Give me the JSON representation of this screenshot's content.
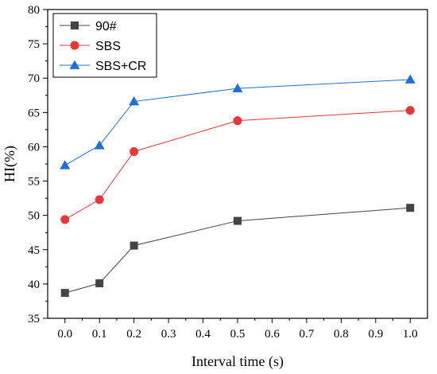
{
  "chart_data": {
    "type": "line",
    "xlabel": "Interval time (s)",
    "ylabel": "HI(%)",
    "xlim": [
      -0.05,
      1.05
    ],
    "ylim": [
      35,
      80
    ],
    "xticks": [
      "0.0",
      "0.1",
      "0.2",
      "0.3",
      "0.4",
      "0.5",
      "0.6",
      "0.7",
      "0.8",
      "0.9",
      "1.0"
    ],
    "yticks": [
      "35",
      "40",
      "45",
      "50",
      "55",
      "60",
      "65",
      "70",
      "75",
      "80"
    ],
    "grid": false,
    "legend_position": "top-left",
    "x": [
      0.0,
      0.1,
      0.2,
      0.5,
      1.0
    ],
    "series": [
      {
        "name": "90#",
        "values": [
          38.7,
          40.1,
          45.6,
          49.2,
          51.1
        ],
        "color": "#444444",
        "marker": "square"
      },
      {
        "name": "SBS",
        "values": [
          49.4,
          52.3,
          59.3,
          63.8,
          65.3
        ],
        "color": "#e8373a",
        "marker": "circle"
      },
      {
        "name": "SBS+CR",
        "values": [
          57.3,
          60.2,
          66.6,
          68.5,
          69.8
        ],
        "color": "#1f6fd6",
        "marker": "triangle"
      }
    ]
  }
}
